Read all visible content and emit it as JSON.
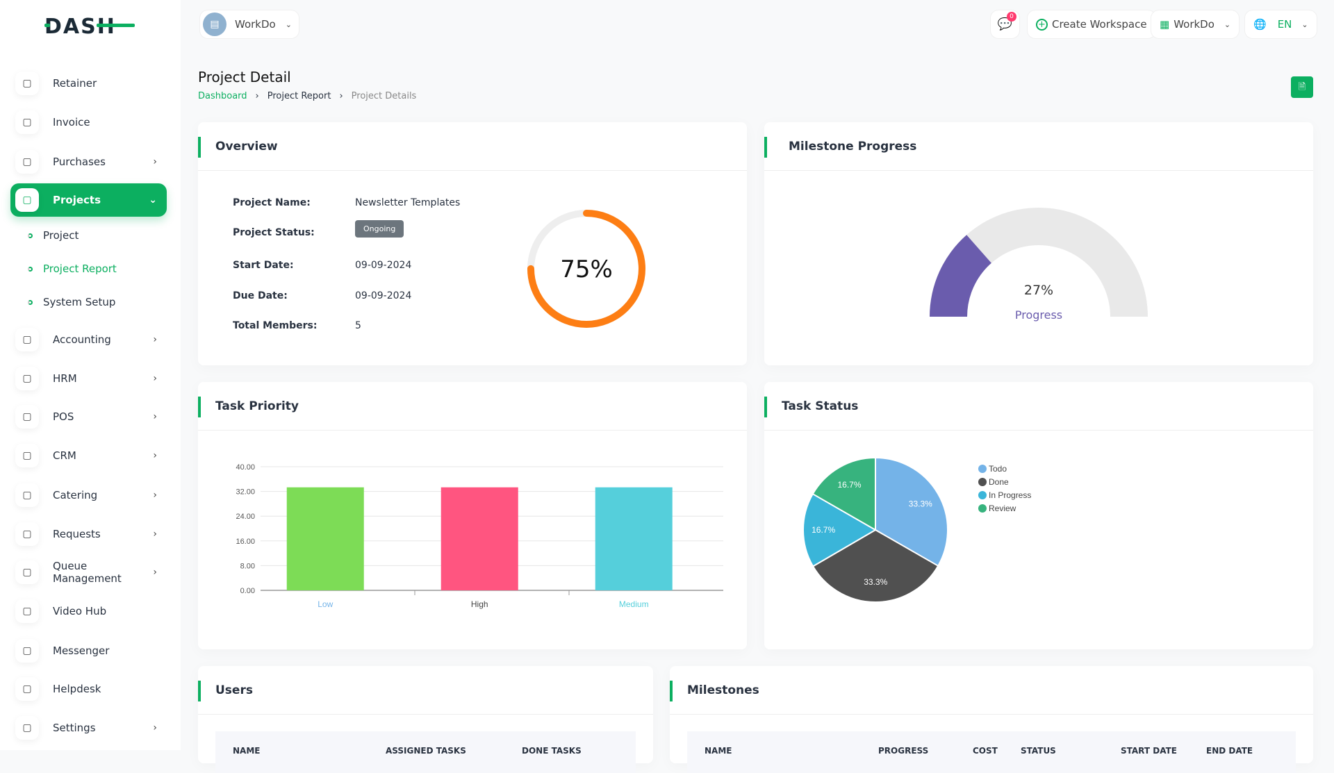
{
  "brand": "DASH",
  "header": {
    "workspace": "WorkDo",
    "notification_count": "0",
    "create_workspace": "Create Workspace",
    "workspace_switch": "WorkDo",
    "language": "EN"
  },
  "sidebar": {
    "items": [
      {
        "label": "Retainer",
        "icon": "retainer-icon",
        "chevron": false
      },
      {
        "label": "Invoice",
        "icon": "invoice-icon",
        "chevron": false
      },
      {
        "label": "Purchases",
        "icon": "cart-icon",
        "chevron": true
      },
      {
        "label": "Projects",
        "icon": "check-square-icon",
        "chevron": true,
        "active": true
      },
      {
        "label": "Accounting",
        "icon": "grid-icon",
        "chevron": true
      },
      {
        "label": "HRM",
        "icon": "hrm-icon",
        "chevron": true
      },
      {
        "label": "POS",
        "icon": "pos-icon",
        "chevron": true
      },
      {
        "label": "CRM",
        "icon": "crm-icon",
        "chevron": true
      },
      {
        "label": "Catering",
        "icon": "catering-icon",
        "chevron": true
      },
      {
        "label": "Requests",
        "icon": "user-plus-icon",
        "chevron": true
      },
      {
        "label": "Queue Management",
        "icon": "phone-icon",
        "chevron": true
      },
      {
        "label": "Video Hub",
        "icon": "video-icon",
        "chevron": false
      },
      {
        "label": "Messenger",
        "icon": "message-icon",
        "chevron": false
      },
      {
        "label": "Helpdesk",
        "icon": "headset-icon",
        "chevron": false
      },
      {
        "label": "Settings",
        "icon": "gear-icon",
        "chevron": true
      }
    ],
    "subitems": [
      {
        "label": "Project"
      },
      {
        "label": "Project Report",
        "active": true
      },
      {
        "label": "System Setup"
      }
    ]
  },
  "page": {
    "title": "Project Detail",
    "breadcrumb": [
      "Dashboard",
      "Project Report",
      "Project Details"
    ]
  },
  "overview": {
    "title": "Overview",
    "rows": [
      {
        "label": "Project Name:",
        "value": "Newsletter Templates"
      },
      {
        "label": "Project Status:",
        "value": "Ongoing"
      },
      {
        "label": "Start Date:",
        "value": "09-09-2024"
      },
      {
        "label": "Due Date:",
        "value": "09-09-2024"
      },
      {
        "label": "Total Members:",
        "value": "5"
      }
    ],
    "progress_label": "75%",
    "progress": 75
  },
  "milestone": {
    "title": "Milestone Progress",
    "value_label": "27%",
    "progress": 27,
    "caption": "Progress"
  },
  "colors": {
    "accent": "#0caf60",
    "donut": "#fd7e14",
    "gauge": "#6a5cad"
  },
  "chart_data": [
    {
      "type": "bar",
      "title": "Task Priority",
      "categories": [
        "Low",
        "High",
        "Medium"
      ],
      "values": [
        33.33,
        33.33,
        33.33
      ],
      "colors": [
        "#7ddc56",
        "#ff5580",
        "#55cfdb"
      ],
      "ylim": [
        0,
        40
      ],
      "yticks": [
        "0.00",
        "8.00",
        "16.00",
        "24.00",
        "32.00",
        "40.00"
      ],
      "grid": true
    },
    {
      "type": "pie",
      "title": "Task Status",
      "categories": [
        "Todo",
        "Done",
        "In Progress",
        "Review"
      ],
      "values": [
        33.3,
        33.3,
        16.7,
        16.7
      ],
      "labels": [
        "33.3%",
        "33.3%",
        "16.7%",
        "16.7%"
      ],
      "colors": [
        "#74b3e8",
        "#505050",
        "#3ab5d9",
        "#37b37e"
      ],
      "legend": "right"
    }
  ],
  "users": {
    "title": "Users",
    "columns": [
      "NAME",
      "ASSIGNED TASKS",
      "DONE TASKS"
    ]
  },
  "milestones": {
    "title": "Milestones",
    "columns": [
      "NAME",
      "PROGRESS",
      "COST",
      "STATUS",
      "START DATE",
      "END DATE"
    ]
  }
}
